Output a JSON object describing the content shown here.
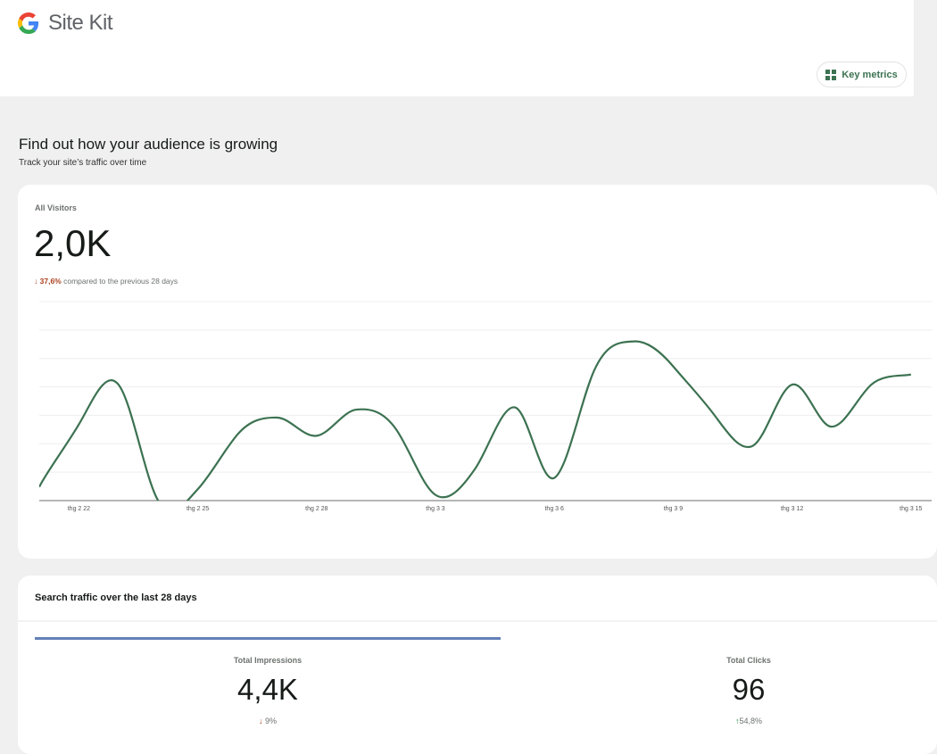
{
  "header": {
    "app_name": "Site Kit",
    "key_metrics_label": "Key metrics"
  },
  "section": {
    "title": "Find out how your audience is growing",
    "subtitle": "Track your site’s traffic over time"
  },
  "visitors": {
    "label": "All Visitors",
    "value": "2,0K",
    "change_arrow": "↓",
    "change": "37,6%",
    "compare_text": "compared to the previous 28 days"
  },
  "chart_data": {
    "type": "line",
    "title": "All Visitors",
    "x": [
      "thg 2 21",
      "thg 2 22",
      "thg 2 23",
      "thg 2 24",
      "thg 2 25",
      "thg 2 26",
      "thg 2 27",
      "thg 2 28",
      "thg 3 1",
      "thg 3 2",
      "thg 3 3",
      "thg 3 4",
      "thg 3 5",
      "thg 3 6",
      "thg 3 7",
      "thg 3 8",
      "thg 3 9",
      "thg 3 10",
      "thg 3 11",
      "thg 3 12",
      "thg 3 13",
      "thg 3 14",
      "thg 3 15"
    ],
    "values": [
      12,
      67,
      102,
      0,
      10,
      58,
      73,
      57,
      80,
      63,
      5,
      28,
      82,
      20,
      114,
      140,
      118,
      77,
      48,
      102,
      65,
      102,
      111
    ],
    "tick_labels": [
      "thg 2 22",
      "thg 2 25",
      "thg 2 28",
      "thg 3 3",
      "thg 3 6",
      "thg 3 9",
      "thg 3 12",
      "thg 3 15"
    ],
    "tick_indices": [
      1,
      4,
      7,
      10,
      13,
      16,
      19,
      22
    ],
    "ylim": [
      0,
      175
    ],
    "grid_step": 25,
    "grid": true,
    "line_color": "#3c7251"
  },
  "search": {
    "title": "Search traffic over the last 28 days",
    "impressions": {
      "label": "Total Impressions",
      "value": "4,4K",
      "arrow": "↓",
      "change": "9%"
    },
    "clicks": {
      "label": "Total Clicks",
      "value": "96",
      "arrow": "↑",
      "change": "54,8%"
    }
  }
}
